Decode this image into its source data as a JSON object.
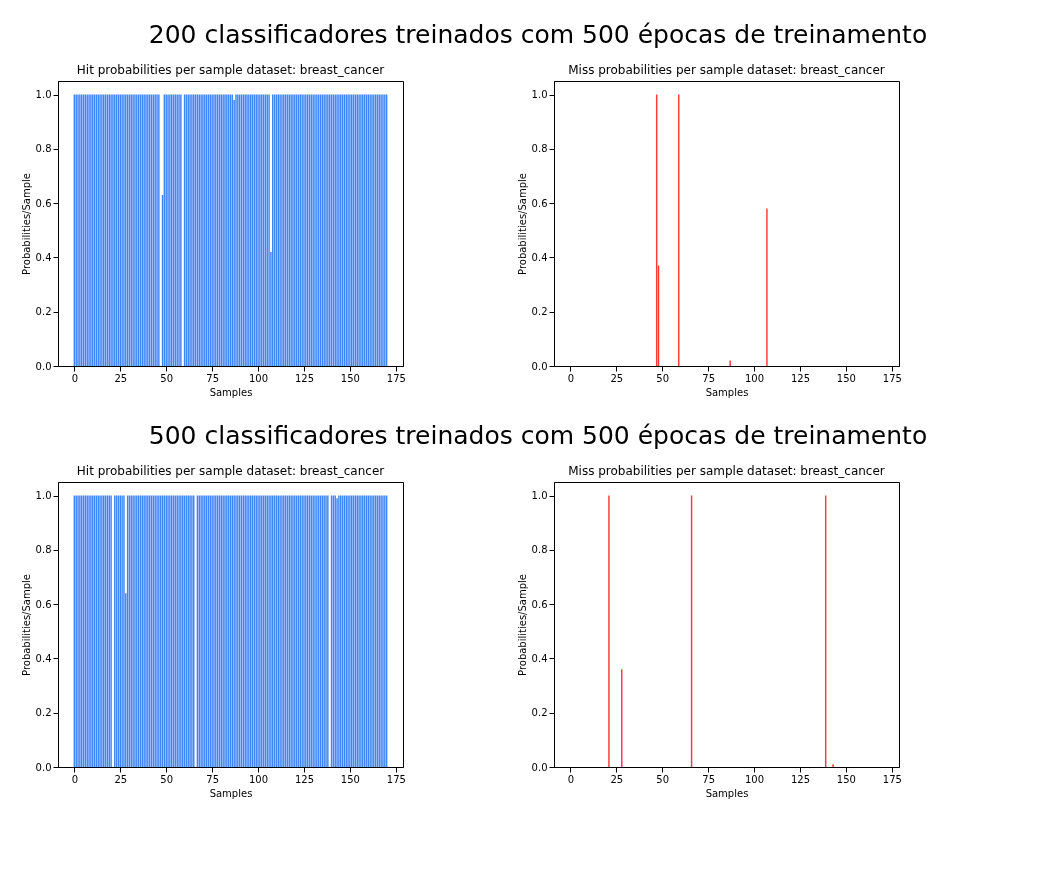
{
  "chart_data": [
    {
      "type": "other",
      "title": "200 classificadores treinados com 500 épocas de treinamento"
    },
    {
      "type": "bar",
      "title": "Hit probabilities per sample dataset: breast_cancer",
      "xlabel": "Samples",
      "ylabel": "Probabilities/Sample",
      "color": "#3f85f5",
      "x": [
        0,
        1,
        2,
        3,
        4,
        5,
        6,
        7,
        8,
        9,
        10,
        11,
        12,
        13,
        14,
        15,
        16,
        17,
        18,
        19,
        20,
        21,
        22,
        23,
        24,
        25,
        26,
        27,
        28,
        29,
        30,
        31,
        32,
        33,
        34,
        35,
        36,
        37,
        38,
        39,
        40,
        41,
        42,
        43,
        44,
        45,
        46,
        47,
        48,
        49,
        50,
        51,
        52,
        53,
        54,
        55,
        56,
        57,
        58,
        59,
        60,
        61,
        62,
        63,
        64,
        65,
        66,
        67,
        68,
        69,
        70,
        71,
        72,
        73,
        74,
        75,
        76,
        77,
        78,
        79,
        80,
        81,
        82,
        83,
        84,
        85,
        86,
        87,
        88,
        89,
        90,
        91,
        92,
        93,
        94,
        95,
        96,
        97,
        98,
        99,
        100,
        101,
        102,
        103,
        104,
        105,
        106,
        107,
        108,
        109,
        110,
        111,
        112,
        113,
        114,
        115,
        116,
        117,
        118,
        119,
        120,
        121,
        122,
        123,
        124,
        125,
        126,
        127,
        128,
        129,
        130,
        131,
        132,
        133,
        134,
        135,
        136,
        137,
        138,
        139,
        140,
        141,
        142,
        143,
        144,
        145,
        146,
        147,
        148,
        149,
        150,
        151,
        152,
        153,
        154,
        155,
        156,
        157,
        158,
        159,
        160,
        161,
        162,
        163,
        164,
        165,
        166,
        167,
        168,
        169,
        170
      ],
      "values": [
        1,
        1,
        1,
        1,
        1,
        1,
        1,
        1,
        1,
        1,
        1,
        1,
        1,
        1,
        1,
        1,
        1,
        1,
        1,
        1,
        1,
        1,
        1,
        1,
        1,
        1,
        1,
        1,
        1,
        1,
        1,
        1,
        1,
        1,
        1,
        1,
        1,
        1,
        1,
        1,
        1,
        1,
        1,
        1,
        1,
        1,
        1,
        0,
        0.63,
        1,
        1,
        1,
        1,
        1,
        1,
        1,
        1,
        1,
        1,
        0,
        1,
        1,
        1,
        1,
        1,
        1,
        1,
        1,
        1,
        1,
        1,
        1,
        1,
        1,
        1,
        1,
        1,
        1,
        1,
        1,
        1,
        1,
        1,
        1,
        1,
        1,
        1,
        0.98,
        1,
        1,
        1,
        1,
        1,
        1,
        1,
        1,
        1,
        1,
        1,
        1,
        1,
        1,
        1,
        1,
        1,
        1,
        1,
        0.42,
        1,
        1,
        1,
        1,
        1,
        1,
        1,
        1,
        1,
        1,
        1,
        1,
        1,
        1,
        1,
        1,
        1,
        1,
        1,
        1,
        1,
        1,
        1,
        1,
        1,
        1,
        1,
        1,
        1,
        1,
        1,
        1,
        1,
        1,
        1,
        1,
        1,
        1,
        1,
        1,
        1,
        1,
        1,
        1,
        1,
        1,
        1,
        1,
        1,
        1,
        1,
        1,
        1,
        1,
        1,
        1,
        1,
        1,
        1,
        1,
        1,
        1,
        1
      ],
      "xlim": [
        -8.9,
        178.9
      ],
      "xticks": [
        0,
        25,
        50,
        75,
        100,
        125,
        150,
        175
      ],
      "ylim": [
        0,
        1.05
      ],
      "yticks": [
        {
          "value": 0,
          "label": "0.0"
        },
        {
          "value": 0.2,
          "label": "0.2"
        },
        {
          "value": 0.4,
          "label": "0.4"
        },
        {
          "value": 0.6,
          "label": "0.6"
        },
        {
          "value": 0.8,
          "label": "0.8"
        },
        {
          "value": 1,
          "label": "1.0"
        }
      ],
      "grid": false
    },
    {
      "type": "bar",
      "title": "Miss probabilities per sample dataset: breast_cancer",
      "xlabel": "Samples",
      "ylabel": "Probabilities/Sample",
      "color": "#ff3b3b",
      "x": [
        0,
        1,
        2,
        3,
        4,
        5,
        6,
        7,
        8,
        9,
        10,
        11,
        12,
        13,
        14,
        15,
        16,
        17,
        18,
        19,
        20,
        21,
        22,
        23,
        24,
        25,
        26,
        27,
        28,
        29,
        30,
        31,
        32,
        33,
        34,
        35,
        36,
        37,
        38,
        39,
        40,
        41,
        42,
        43,
        44,
        45,
        46,
        47,
        48,
        49,
        50,
        51,
        52,
        53,
        54,
        55,
        56,
        57,
        58,
        59,
        60,
        61,
        62,
        63,
        64,
        65,
        66,
        67,
        68,
        69,
        70,
        71,
        72,
        73,
        74,
        75,
        76,
        77,
        78,
        79,
        80,
        81,
        82,
        83,
        84,
        85,
        86,
        87,
        88,
        89,
        90,
        91,
        92,
        93,
        94,
        95,
        96,
        97,
        98,
        99,
        100,
        101,
        102,
        103,
        104,
        105,
        106,
        107,
        108,
        109,
        110,
        111,
        112,
        113,
        114,
        115,
        116,
        117,
        118,
        119,
        120,
        121,
        122,
        123,
        124,
        125,
        126,
        127,
        128,
        129,
        130,
        131,
        132,
        133,
        134,
        135,
        136,
        137,
        138,
        139,
        140,
        141,
        142,
        143,
        144,
        145,
        146,
        147,
        148,
        149,
        150,
        151,
        152,
        153,
        154,
        155,
        156,
        157,
        158,
        159,
        160,
        161,
        162,
        163,
        164,
        165,
        166,
        167,
        168,
        169,
        170
      ],
      "values": [
        0,
        0,
        0,
        0,
        0,
        0,
        0,
        0,
        0,
        0,
        0,
        0,
        0,
        0,
        0,
        0,
        0,
        0,
        0,
        0,
        0,
        0,
        0,
        0,
        0,
        0,
        0,
        0,
        0,
        0,
        0,
        0,
        0,
        0,
        0,
        0,
        0,
        0,
        0,
        0,
        0,
        0,
        0,
        0,
        0,
        0,
        0,
        1,
        0.37,
        0,
        0,
        0,
        0,
        0,
        0,
        0,
        0,
        0,
        0,
        1,
        0,
        0,
        0,
        0,
        0,
        0,
        0,
        0,
        0,
        0,
        0,
        0,
        0,
        0,
        0,
        0,
        0,
        0,
        0,
        0,
        0,
        0,
        0,
        0,
        0,
        0,
        0,
        0.02,
        0,
        0,
        0,
        0,
        0,
        0,
        0,
        0,
        0,
        0,
        0,
        0,
        0,
        0,
        0,
        0,
        0,
        0,
        0,
        0.58,
        0,
        0,
        0,
        0,
        0,
        0,
        0,
        0,
        0,
        0,
        0,
        0,
        0,
        0,
        0,
        0,
        0,
        0,
        0,
        0,
        0,
        0,
        0,
        0,
        0,
        0,
        0,
        0,
        0,
        0,
        0,
        0,
        0,
        0,
        0,
        0,
        0,
        0,
        0,
        0,
        0,
        0,
        0,
        0,
        0,
        0,
        0,
        0,
        0,
        0,
        0,
        0,
        0,
        0,
        0,
        0,
        0,
        0,
        0,
        0,
        0,
        0,
        0
      ],
      "xlim": [
        -8.9,
        178.9
      ],
      "xticks": [
        0,
        25,
        50,
        75,
        100,
        125,
        150,
        175
      ],
      "ylim": [
        0,
        1.05
      ],
      "yticks": [
        {
          "value": 0,
          "label": "0.0"
        },
        {
          "value": 0.2,
          "label": "0.2"
        },
        {
          "value": 0.4,
          "label": "0.4"
        },
        {
          "value": 0.6,
          "label": "0.6"
        },
        {
          "value": 0.8,
          "label": "0.8"
        },
        {
          "value": 1,
          "label": "1.0"
        }
      ],
      "grid": false
    },
    {
      "type": "other",
      "title": "500 classificadores treinados com 500 épocas de treinamento"
    },
    {
      "type": "bar",
      "title": "Hit probabilities per sample dataset: breast_cancer",
      "xlabel": "Samples",
      "ylabel": "Probabilities/Sample",
      "color": "#3f85f5",
      "x": [
        0,
        1,
        2,
        3,
        4,
        5,
        6,
        7,
        8,
        9,
        10,
        11,
        12,
        13,
        14,
        15,
        16,
        17,
        18,
        19,
        20,
        21,
        22,
        23,
        24,
        25,
        26,
        27,
        28,
        29,
        30,
        31,
        32,
        33,
        34,
        35,
        36,
        37,
        38,
        39,
        40,
        41,
        42,
        43,
        44,
        45,
        46,
        47,
        48,
        49,
        50,
        51,
        52,
        53,
        54,
        55,
        56,
        57,
        58,
        59,
        60,
        61,
        62,
        63,
        64,
        65,
        66,
        67,
        68,
        69,
        70,
        71,
        72,
        73,
        74,
        75,
        76,
        77,
        78,
        79,
        80,
        81,
        82,
        83,
        84,
        85,
        86,
        87,
        88,
        89,
        90,
        91,
        92,
        93,
        94,
        95,
        96,
        97,
        98,
        99,
        100,
        101,
        102,
        103,
        104,
        105,
        106,
        107,
        108,
        109,
        110,
        111,
        112,
        113,
        114,
        115,
        116,
        117,
        118,
        119,
        120,
        121,
        122,
        123,
        124,
        125,
        126,
        127,
        128,
        129,
        130,
        131,
        132,
        133,
        134,
        135,
        136,
        137,
        138,
        139,
        140,
        141,
        142,
        143,
        144,
        145,
        146,
        147,
        148,
        149,
        150,
        151,
        152,
        153,
        154,
        155,
        156,
        157,
        158,
        159,
        160,
        161,
        162,
        163,
        164,
        165,
        166,
        167,
        168,
        169,
        170
      ],
      "values": [
        1,
        1,
        1,
        1,
        1,
        1,
        1,
        1,
        1,
        1,
        1,
        1,
        1,
        1,
        1,
        1,
        1,
        1,
        1,
        1,
        1,
        0,
        1,
        1,
        1,
        1,
        1,
        1,
        0.64,
        1,
        1,
        1,
        1,
        1,
        1,
        1,
        1,
        1,
        1,
        1,
        1,
        1,
        1,
        1,
        1,
        1,
        1,
        1,
        1,
        1,
        1,
        1,
        1,
        1,
        1,
        1,
        1,
        1,
        1,
        1,
        1,
        1,
        1,
        1,
        1,
        1,
        0,
        1,
        1,
        1,
        1,
        1,
        1,
        1,
        1,
        1,
        1,
        1,
        1,
        1,
        1,
        1,
        1,
        1,
        1,
        1,
        1,
        1,
        1,
        1,
        1,
        1,
        1,
        1,
        1,
        1,
        1,
        1,
        1,
        1,
        1,
        1,
        1,
        1,
        1,
        1,
        1,
        1,
        1,
        1,
        1,
        1,
        1,
        1,
        1,
        1,
        1,
        1,
        1,
        1,
        1,
        1,
        1,
        1,
        1,
        1,
        1,
        1,
        1,
        1,
        1,
        1,
        1,
        1,
        1,
        1,
        1,
        1,
        1,
        0,
        1,
        1,
        1,
        0.99,
        1,
        1,
        1,
        1,
        1,
        1,
        1,
        1,
        1,
        1,
        1,
        1,
        1,
        1,
        1,
        1,
        1,
        1,
        1,
        1,
        1,
        1,
        1,
        1,
        1,
        1,
        1
      ],
      "xlim": [
        -8.9,
        178.9
      ],
      "xticks": [
        0,
        25,
        50,
        75,
        100,
        125,
        150,
        175
      ],
      "ylim": [
        0,
        1.05
      ],
      "yticks": [
        {
          "value": 0,
          "label": "0.0"
        },
        {
          "value": 0.2,
          "label": "0.2"
        },
        {
          "value": 0.4,
          "label": "0.4"
        },
        {
          "value": 0.6,
          "label": "0.6"
        },
        {
          "value": 0.8,
          "label": "0.8"
        },
        {
          "value": 1,
          "label": "1.0"
        }
      ],
      "grid": false
    },
    {
      "type": "bar",
      "title": "Miss probabilities per sample dataset: breast_cancer",
      "xlabel": "Samples",
      "ylabel": "Probabilities/Sample",
      "color": "#ff3b3b",
      "x": [
        0,
        1,
        2,
        3,
        4,
        5,
        6,
        7,
        8,
        9,
        10,
        11,
        12,
        13,
        14,
        15,
        16,
        17,
        18,
        19,
        20,
        21,
        22,
        23,
        24,
        25,
        26,
        27,
        28,
        29,
        30,
        31,
        32,
        33,
        34,
        35,
        36,
        37,
        38,
        39,
        40,
        41,
        42,
        43,
        44,
        45,
        46,
        47,
        48,
        49,
        50,
        51,
        52,
        53,
        54,
        55,
        56,
        57,
        58,
        59,
        60,
        61,
        62,
        63,
        64,
        65,
        66,
        67,
        68,
        69,
        70,
        71,
        72,
        73,
        74,
        75,
        76,
        77,
        78,
        79,
        80,
        81,
        82,
        83,
        84,
        85,
        86,
        87,
        88,
        89,
        90,
        91,
        92,
        93,
        94,
        95,
        96,
        97,
        98,
        99,
        100,
        101,
        102,
        103,
        104,
        105,
        106,
        107,
        108,
        109,
        110,
        111,
        112,
        113,
        114,
        115,
        116,
        117,
        118,
        119,
        120,
        121,
        122,
        123,
        124,
        125,
        126,
        127,
        128,
        129,
        130,
        131,
        132,
        133,
        134,
        135,
        136,
        137,
        138,
        139,
        140,
        141,
        142,
        143,
        144,
        145,
        146,
        147,
        148,
        149,
        150,
        151,
        152,
        153,
        154,
        155,
        156,
        157,
        158,
        159,
        160,
        161,
        162,
        163,
        164,
        165,
        166,
        167,
        168,
        169,
        170
      ],
      "values": [
        0,
        0,
        0,
        0,
        0,
        0,
        0,
        0,
        0,
        0,
        0,
        0,
        0,
        0,
        0,
        0,
        0,
        0,
        0,
        0,
        0,
        1,
        0,
        0,
        0,
        0,
        0,
        0,
        0.36,
        0,
        0,
        0,
        0,
        0,
        0,
        0,
        0,
        0,
        0,
        0,
        0,
        0,
        0,
        0,
        0,
        0,
        0,
        0,
        0,
        0,
        0,
        0,
        0,
        0,
        0,
        0,
        0,
        0,
        0,
        0,
        0,
        0,
        0,
        0,
        0,
        0,
        1,
        0,
        0,
        0,
        0,
        0,
        0,
        0,
        0,
        0,
        0,
        0,
        0,
        0,
        0,
        0,
        0,
        0,
        0,
        0,
        0,
        0,
        0,
        0,
        0,
        0,
        0,
        0,
        0,
        0,
        0,
        0,
        0,
        0,
        0,
        0,
        0,
        0,
        0,
        0,
        0,
        0,
        0,
        0,
        0,
        0,
        0,
        0,
        0,
        0,
        0,
        0,
        0,
        0,
        0,
        0,
        0,
        0,
        0,
        0,
        0,
        0,
        0,
        0,
        0,
        0,
        0,
        0,
        0,
        0,
        0,
        0,
        0,
        1,
        0,
        0,
        0,
        0.01,
        0,
        0,
        0,
        0,
        0,
        0,
        0,
        0,
        0,
        0,
        0,
        0,
        0,
        0,
        0,
        0,
        0,
        0,
        0,
        0,
        0,
        0,
        0,
        0,
        0,
        0,
        0
      ],
      "xlim": [
        -8.9,
        178.9
      ],
      "xticks": [
        0,
        25,
        50,
        75,
        100,
        125,
        150,
        175
      ],
      "ylim": [
        0,
        1.05
      ],
      "yticks": [
        {
          "value": 0,
          "label": "0.0"
        },
        {
          "value": 0.2,
          "label": "0.2"
        },
        {
          "value": 0.4,
          "label": "0.4"
        },
        {
          "value": 0.6,
          "label": "0.6"
        },
        {
          "value": 0.8,
          "label": "0.8"
        },
        {
          "value": 1,
          "label": "1.0"
        }
      ],
      "grid": false
    }
  ]
}
